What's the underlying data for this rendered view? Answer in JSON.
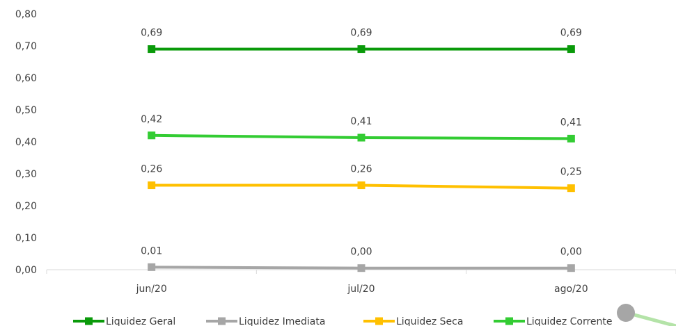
{
  "chart_data": {
    "type": "line",
    "title": "",
    "xlabel": "",
    "ylabel": "",
    "categories": [
      "jun/20",
      "jul/20",
      "ago/20"
    ],
    "ylim": [
      0,
      0.8
    ],
    "yticks": [
      "0,00",
      "0,10",
      "0,20",
      "0,30",
      "0,40",
      "0,50",
      "0,60",
      "0,70",
      "0,80"
    ],
    "grid": false,
    "legend_position": "bottom",
    "series": [
      {
        "name": "Liquidez Geral",
        "values": [
          0.69,
          0.69,
          0.69
        ],
        "labels": [
          "0,69",
          "0,69",
          "0,69"
        ],
        "color": "#0a9a0a"
      },
      {
        "name": "Liquidez  Imediata",
        "values": [
          0.008,
          0.005,
          0.005
        ],
        "labels": [
          "0,01",
          "0,00",
          "0,00"
        ],
        "color": "#a6a6a6"
      },
      {
        "name": "Liquidez Seca",
        "values": [
          0.264,
          0.264,
          0.255
        ],
        "labels": [
          "0,26",
          "0,26",
          "0,25"
        ],
        "color": "#ffc000"
      },
      {
        "name": "Liquidez Corrente",
        "values": [
          0.42,
          0.413,
          0.41
        ],
        "labels": [
          "0,42",
          "0,41",
          "0,41"
        ],
        "color": "#33cc33"
      }
    ]
  }
}
